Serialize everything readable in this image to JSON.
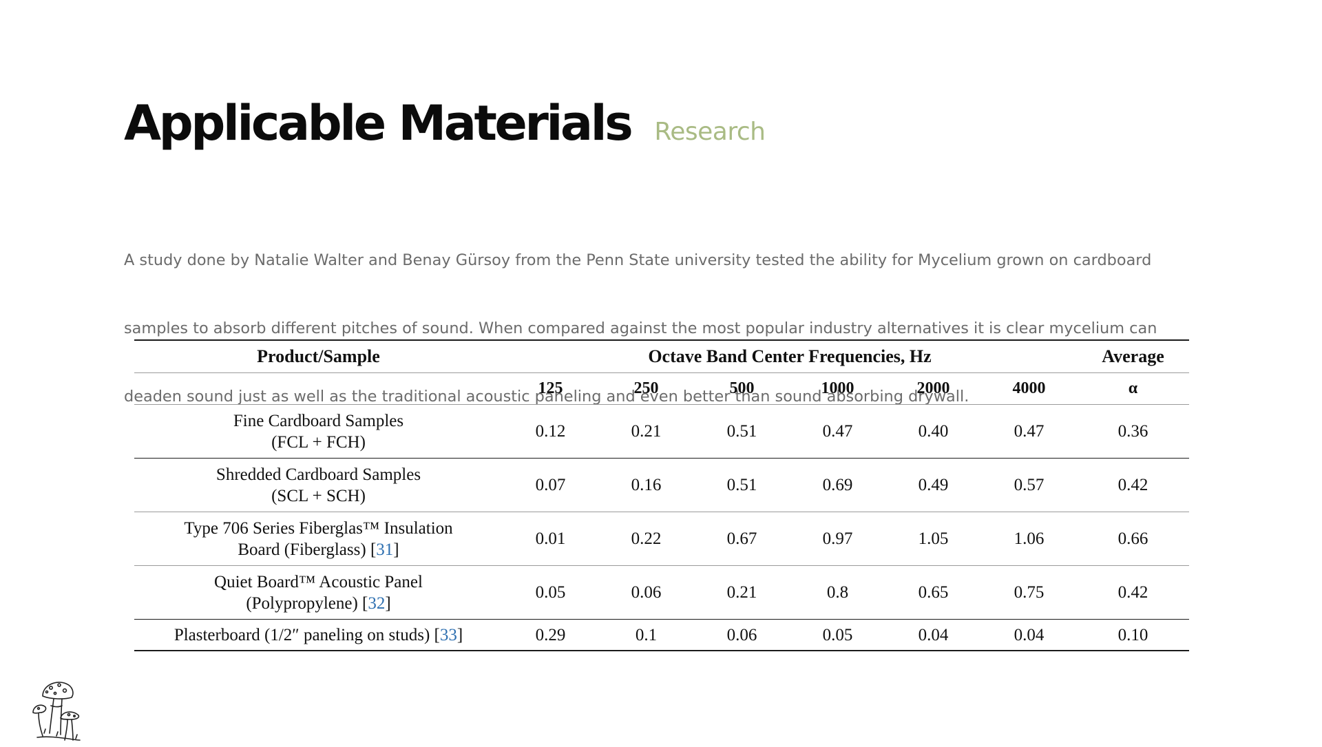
{
  "header": {
    "title": "Applicable Materials",
    "subtitle": "Research"
  },
  "intro": {
    "line1": " A study done by Natalie Walter and Benay Gürsoy from the Penn State university tested the ability for Mycelium grown on cardboard",
    "line2": "samples to absorb different pitches of sound. When compared against the most popular industry alternatives it is clear mycelium can",
    "line3": "deaden sound just as well as the traditional acoustic paneling and even better than sound absorbing drywall."
  },
  "table": {
    "header_product": "Product/Sample",
    "header_freq_group": "Octave Band Center Frequencies, Hz",
    "header_average": "Average",
    "frequencies": [
      "125",
      "250",
      "500",
      "1000",
      "2000",
      "4000"
    ],
    "avg_symbol": "α",
    "rows": [
      {
        "product_line1": "Fine Cardboard Samples",
        "product_line2": "(FCL + FCH)",
        "ref": "",
        "values": [
          "0.12",
          "0.21",
          "0.51",
          "0.47",
          "0.40",
          "0.47"
        ],
        "average": "0.36"
      },
      {
        "product_line1": "Shredded Cardboard Samples",
        "product_line2": "(SCL + SCH)",
        "ref": "",
        "values": [
          "0.07",
          "0.16",
          "0.51",
          "0.69",
          "0.49",
          "0.57"
        ],
        "average": "0.42"
      },
      {
        "product_line1": "Type 706 Series Fiberglas™ Insulation",
        "product_line2": "Board (Fiberglass) [",
        "ref": "31",
        "ref_close": "]",
        "values": [
          "0.01",
          "0.22",
          "0.67",
          "0.97",
          "1.05",
          "1.06"
        ],
        "average": "0.66"
      },
      {
        "product_line1": "Quiet Board™ Acoustic Panel",
        "product_line2": "(Polypropylene) [",
        "ref": "32",
        "ref_close": "]",
        "values": [
          "0.05",
          "0.06",
          "0.21",
          "0.8",
          "0.65",
          "0.75"
        ],
        "average": "0.42"
      },
      {
        "product_line1": "Plasterboard (1/2″ paneling on studs) [",
        "ref": "33",
        "ref_close": "]",
        "values": [
          "0.29",
          "0.1",
          "0.06",
          "0.05",
          "0.04",
          "0.04"
        ],
        "average": "0.10"
      }
    ]
  },
  "footer": {
    "logo_icon": "mushroom-icon"
  }
}
